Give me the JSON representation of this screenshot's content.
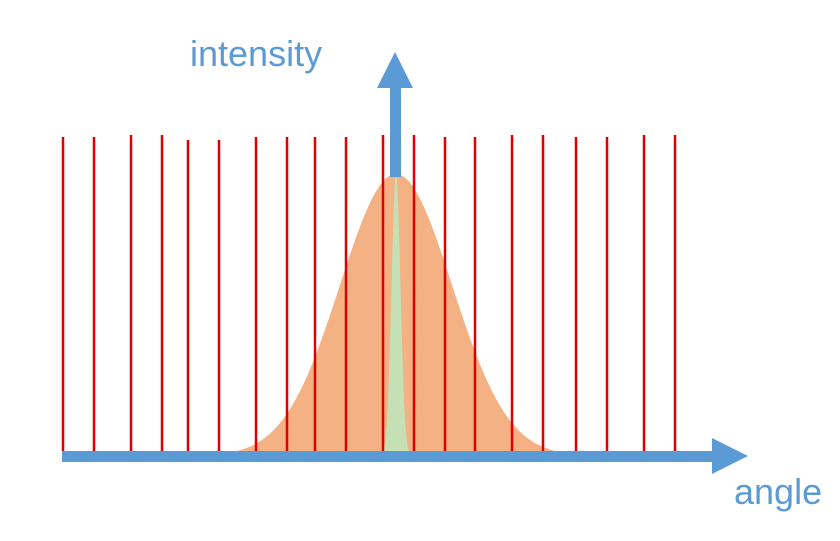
{
  "axes": {
    "y_label": "intensity",
    "x_label": "angle"
  },
  "colors": {
    "axis": "#5b9bd5",
    "grating_lines": "#e00000",
    "wide_curve": "#f4b183",
    "narrow_curve": "#c5e0b4",
    "label_text": "#5b9bd5"
  },
  "curves": {
    "wide": {
      "center_angle": 0,
      "width": 1.0,
      "peak_intensity": 1.0
    },
    "narrow": {
      "center_angle": 0,
      "width": 0.08,
      "peak_intensity": 1.0
    }
  },
  "grating": {
    "line_count": 21
  }
}
